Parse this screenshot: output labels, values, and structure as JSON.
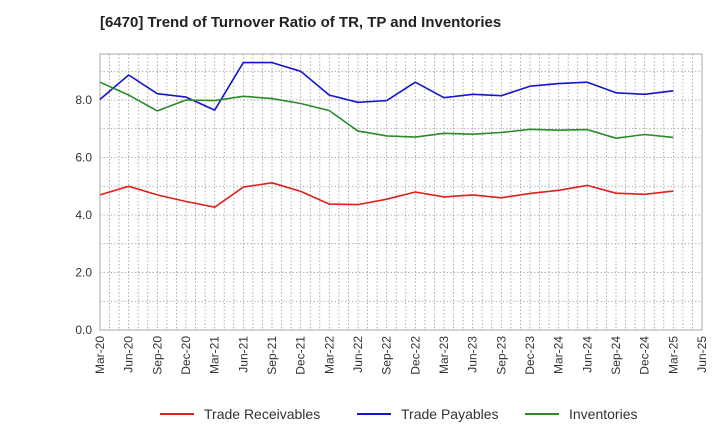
{
  "chart_data": {
    "type": "line",
    "title": "[6470]  Trend of Turnover Ratio of TR, TP and Inventories",
    "xlabel": "",
    "ylabel": "",
    "ylim": [
      0,
      9.6
    ],
    "yticks": [
      "0.0",
      "2.0",
      "4.0",
      "6.0",
      "8.0"
    ],
    "ytick_values": [
      0,
      2,
      4,
      6,
      8
    ],
    "x_tick_labels": [
      "Mar-20",
      "Jun-20",
      "Sep-20",
      "Dec-20",
      "Mar-21",
      "Jun-21",
      "Sep-21",
      "Dec-21",
      "Mar-22",
      "Jun-22",
      "Sep-22",
      "Dec-22",
      "Mar-23",
      "Jun-23",
      "Sep-23",
      "Dec-23",
      "Mar-24",
      "Jun-24",
      "Sep-24",
      "Dec-24",
      "Mar-25",
      "Jun-25"
    ],
    "categories": [
      "Mar-20",
      "Jun-20",
      "Sep-20",
      "Dec-20",
      "Mar-21",
      "Jun-21",
      "Sep-21",
      "Dec-21",
      "Mar-22",
      "Jun-22",
      "Sep-22",
      "Dec-22",
      "Mar-23",
      "Jun-23",
      "Sep-23",
      "Dec-23",
      "Mar-24",
      "Jun-24",
      "Sep-24",
      "Dec-24",
      "Mar-25"
    ],
    "grid": true,
    "legend_position": "bottom",
    "series": [
      {
        "name": "Trade Receivables",
        "color": "#e0201b",
        "values": [
          4.7,
          5.0,
          4.7,
          4.47,
          4.27,
          4.97,
          5.12,
          4.82,
          4.38,
          4.36,
          4.55,
          4.8,
          4.63,
          4.7,
          4.6,
          4.75,
          4.86,
          5.03,
          4.76,
          4.72,
          4.83
        ]
      },
      {
        "name": "Trade Payables",
        "color": "#1515d0",
        "values": [
          8.02,
          8.87,
          8.22,
          8.1,
          7.65,
          9.3,
          9.3,
          9.0,
          8.17,
          7.92,
          7.98,
          8.62,
          8.08,
          8.2,
          8.15,
          8.48,
          8.57,
          8.62,
          8.25,
          8.2,
          8.32
        ]
      },
      {
        "name": "Inventories",
        "color": "#2a8a2a",
        "values": [
          8.62,
          8.17,
          7.62,
          8.0,
          7.98,
          8.13,
          8.05,
          7.88,
          7.63,
          6.92,
          6.75,
          6.71,
          6.84,
          6.81,
          6.87,
          6.98,
          6.95,
          6.97,
          6.67,
          6.8,
          6.7
        ]
      }
    ]
  }
}
